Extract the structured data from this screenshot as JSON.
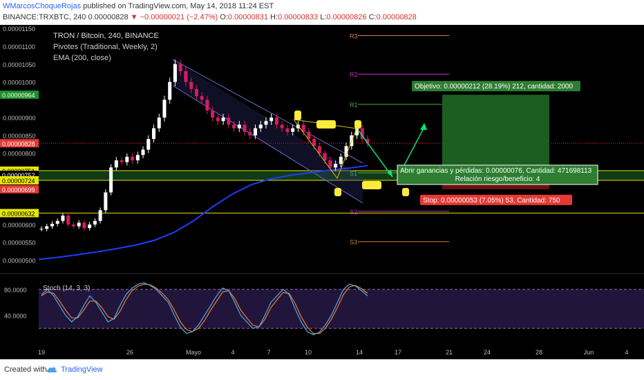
{
  "header": {
    "author": "WMarcosChoqueRojas",
    "published": "published on TradingView.com, May 14, 2018 11:24 EST",
    "symbol_line": "BINANCE:TRXBTC, 240",
    "last": "0.00000828",
    "change": "▼ −0.00000021 (−2.47%)",
    "ohlc": {
      "o_label": "O:",
      "o": "0.00000831",
      "h_label": "H:",
      "h": "0.00000833",
      "l_label": "L:",
      "l": "0.00000826",
      "c_label": "C:",
      "c": "0.00000828"
    }
  },
  "legend": {
    "title": "TRON / Bitcoin, 240, BINANCE",
    "pivots": "Pivotes (Traditional, Weekly, 2)",
    "ema": "EMA (200, close)",
    "stoch": "Stoch (14, 3, 3)"
  },
  "colors": {
    "background": "#000000",
    "ema": "#1e3cff",
    "pivot_r3": "#d2813c",
    "pivot_r2": "#cc33cc",
    "pivot_r1": "#4caf50",
    "pivot_s1": "#4caf50",
    "pivot_s2": "#cc33cc",
    "pivot_s3": "#d2813c",
    "support": "#e6e600",
    "target_zone": "#1b5e20",
    "stop_zone": "#b71c1c",
    "stoch_k": "#4aa3df",
    "stoch_d": "#e07a2e",
    "up_candle": "#ffffff",
    "down_candle": "#d81b60"
  },
  "price_axis": {
    "ticks": [
      "0.00001150",
      "0.00001100",
      "0.00001050",
      "0.00001000",
      "0.00000900",
      "0.00000850",
      "0.00000800",
      "0.00000600",
      "0.00000550",
      "0.00000500"
    ],
    "labels": [
      {
        "text": "0.00000964",
        "bg": "#1b8f2a",
        "fg": "#ffffff",
        "value": 9.64e-06
      },
      {
        "text": "0.00000828",
        "bg": "#e53935",
        "fg": "#ffffff",
        "value": 8.28e-06
      },
      {
        "text": "0.00000751",
        "bg": "#e6e600",
        "fg": "#000000",
        "value": 7.51e-06
      },
      {
        "text": "0.00000752",
        "bg": "#000000",
        "fg": "#ffffff",
        "value": 7.39e-06
      },
      {
        "text": "0.00000724",
        "bg": "#e6e600",
        "fg": "#000000",
        "value": 7.24e-06
      },
      {
        "text": "0.00000699",
        "bg": "#e53935",
        "fg": "#ffffff",
        "value": 6.99e-06
      },
      {
        "text": "0.00000632",
        "bg": "#e6e600",
        "fg": "#000000",
        "value": 6.32e-06
      }
    ]
  },
  "stoch_axis": {
    "ticks": [
      "80.0000",
      "40.0000"
    ]
  },
  "time_axis": {
    "ticks": [
      "19",
      "26",
      "Mayo",
      "4",
      "7",
      "10",
      "14",
      "17",
      "21",
      "24",
      "28",
      "Jun",
      "4"
    ]
  },
  "pivots": [
    {
      "label": "R3",
      "value": 1.13e-05
    },
    {
      "label": "R2",
      "value": 1.022e-05
    },
    {
      "label": "R1",
      "value": 9.37e-06
    },
    {
      "label": "S1",
      "value": 7.45e-06
    },
    {
      "label": "S2",
      "value": 6.37e-06
    },
    {
      "label": "S3",
      "value": 5.52e-06
    }
  ],
  "position": {
    "target": "Objetivo: 0.00000212 (28.19%) 212, cantidad: 2000",
    "entry_line1": "Abrir ganancias y pérdidas: 0.00000076, Cantidad: 471698113",
    "entry_line2": "Relación riesgo/beneficio: 4",
    "stop": "Stop: 0.00000053 (7.05%) 53, Cantidad: 750"
  },
  "chart_data": {
    "type": "candlestick",
    "title": "TRON / Bitcoin, 240, BINANCE",
    "ylim": [
      4.7e-06,
      1.16e-05
    ],
    "ema200": [
      5.02e-06,
      5.08e-06,
      5.15e-06,
      5.23e-06,
      5.32e-06,
      5.42e-06,
      5.56e-06,
      5.78e-06,
      6.1e-06,
      6.5e-06,
      6.85e-06,
      7.12e-06,
      7.28e-06,
      7.38e-06,
      7.45e-06,
      7.52e-06,
      7.58e-06,
      7.65e-06
    ],
    "close": [
      5.88e-06,
      5.95e-06,
      6.02e-06,
      6.1e-06,
      6.25e-06,
      6e-06,
      5.95e-06,
      6.05e-06,
      5.9e-06,
      6e-06,
      6.1e-06,
      6.4e-06,
      6.9e-06,
      7.6e-06,
      7.8e-06,
      7.75e-06,
      7.9e-06,
      7.8e-06,
      7.95e-06,
      8.1e-06,
      8.4e-06,
      8.7e-06,
      9e-06,
      9.5e-06,
      1e-05,
      1.05e-05,
      1.03e-05,
      1e-05,
      9.8e-06,
      9.6e-06,
      9.5e-06,
      9.2e-06,
      9e-06,
      8.9e-06,
      9e-06,
      8.8e-06,
      8.7e-06,
      8.8e-06,
      8.6e-06,
      8.5e-06,
      8.7e-06,
      8.8e-06,
      8.9e-06,
      9e-06,
      8.8e-06,
      8.7e-06,
      8.6e-06,
      8.7e-06,
      8.8e-06,
      8.6e-06,
      8.4e-06,
      8.2e-06,
      8e-06,
      7.8e-06,
      7.6e-06,
      7.7e-06,
      7.9e-06,
      8.2e-06,
      8.5e-06,
      8.7e-06,
      8.4e-06,
      8.28e-06
    ],
    "support_levels": [
      7.51e-06,
      7.24e-06,
      6.32e-06
    ],
    "stoch_k": [
      72,
      80,
      70,
      55,
      40,
      30,
      38,
      55,
      70,
      60,
      45,
      30,
      35,
      55,
      72,
      82,
      88,
      90,
      86,
      80,
      70,
      60,
      40,
      22,
      12,
      15,
      25,
      40,
      55,
      70,
      82,
      78,
      60,
      40,
      30,
      20,
      22,
      40,
      60,
      70,
      80,
      72,
      50,
      30,
      15,
      10,
      14,
      25,
      40,
      60,
      80,
      88,
      85,
      78,
      70
    ],
    "stoch_d": [
      70,
      76,
      74,
      62,
      48,
      36,
      36,
      48,
      62,
      62,
      52,
      38,
      34,
      46,
      64,
      78,
      85,
      88,
      87,
      82,
      74,
      64,
      48,
      30,
      18,
      15,
      20,
      32,
      48,
      62,
      76,
      78,
      66,
      48,
      36,
      25,
      22,
      34,
      52,
      64,
      75,
      74,
      58,
      38,
      22,
      12,
      12,
      20,
      34,
      52,
      72,
      84,
      86,
      81,
      74
    ],
    "stoch_ylim": [
      0,
      100
    ]
  }
}
